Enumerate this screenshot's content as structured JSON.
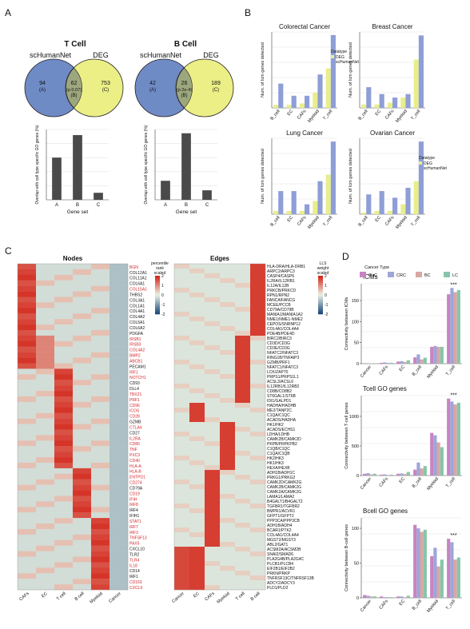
{
  "panel_labels": {
    "a": "A",
    "b": "B",
    "c": "C",
    "d": "D"
  },
  "venn": [
    {
      "title": "T Cell",
      "left_label": "scHumanNet",
      "right_label": "DEG",
      "regions": [
        {
          "count": "94",
          "tag": "(A)"
        },
        {
          "count": "62",
          "sub": "(p 0.07)",
          "tag": "(B)"
        },
        {
          "count": "753",
          "tag": "(C)"
        }
      ]
    },
    {
      "title": "B Cell",
      "left_label": "scHumanNet",
      "right_label": "DEG",
      "regions": [
        {
          "count": "42",
          "tag": "(A)"
        },
        {
          "count": "26",
          "sub": "(p 2e-4)",
          "tag": "(B)"
        },
        {
          "count": "189",
          "tag": "(C)"
        }
      ]
    }
  ],
  "chart_data": [
    {
      "type": "bar",
      "panel": "A",
      "title": "T Cell",
      "categories": [
        "A",
        "B",
        "C"
      ],
      "values": [
        30,
        46,
        5
      ],
      "ylim": [
        0,
        50
      ],
      "ylabel": "Overlap with cell type specific GO genes (%)",
      "xlabel": "Gene set"
    },
    {
      "type": "bar",
      "panel": "A",
      "title": "B Cell",
      "categories": [
        "A",
        "B",
        "C"
      ],
      "values": [
        10,
        35,
        5
      ],
      "ylim": [
        0,
        37
      ],
      "ylabel": "Overlap with cell type specific GO genes (%)",
      "xlabel": "Gene set"
    },
    {
      "type": "bar",
      "panel": "B",
      "title": "Colorectal Cancer",
      "categories": [
        "B_cell",
        "EC",
        "CAFs",
        "Myeloid",
        "T_cell"
      ],
      "series": [
        {
          "name": "DEG",
          "values": [
            1,
            1,
            1.5,
            5,
            13
          ]
        },
        {
          "name": "scHumanNet",
          "values": [
            8,
            4,
            4,
            11,
            24
          ]
        }
      ],
      "ylim": [
        0,
        25
      ],
      "ylabel": "Num. of Icm genes detected",
      "legend_title": "Datatype"
    },
    {
      "type": "bar",
      "panel": "B",
      "title": "Breast Cancer",
      "categories": [
        "B_cell",
        "EC",
        "CAFs",
        "Myeloid",
        "T_cell"
      ],
      "series": [
        {
          "name": "DEG",
          "values": [
            1,
            1,
            1.5,
            3,
            14
          ]
        },
        {
          "name": "scHumanNet",
          "values": [
            6,
            4,
            3,
            4,
            21
          ]
        }
      ],
      "ylim": [
        0,
        22
      ],
      "ylabel": "Num. of Icm genes detected"
    },
    {
      "type": "bar",
      "panel": "B",
      "title": "Lung Cancer",
      "categories": [
        "B_cell",
        "EC",
        "CAFs",
        "Myeloid",
        "T_cell"
      ],
      "series": [
        {
          "name": "DEG",
          "values": [
            1,
            1,
            1,
            4,
            12
          ]
        },
        {
          "name": "scHumanNet",
          "values": [
            7,
            7,
            3,
            10,
            22
          ]
        }
      ],
      "ylim": [
        0,
        23
      ],
      "ylabel": "Num. of Icm genes detected"
    },
    {
      "type": "bar",
      "panel": "B",
      "title": "Ovarian Cancer",
      "categories": [
        "B_cell",
        "EC",
        "CAFs",
        "Myeloid",
        "T_cell"
      ],
      "series": [
        {
          "name": "DEG",
          "values": [
            0.5,
            1,
            1,
            3,
            10
          ]
        },
        {
          "name": "scHumanNet",
          "values": [
            6,
            7,
            5,
            8,
            22
          ]
        }
      ],
      "ylim": [
        0,
        23
      ],
      "ylabel": "Num. of Icm genes detected",
      "legend_title": "Datatype"
    },
    {
      "type": "bar",
      "panel": "D",
      "title": "ICMs",
      "categories": [
        "Cancer",
        "CAFs",
        "EC",
        "B_cell",
        "Myeloid",
        "T_cell"
      ],
      "series": [
        {
          "name": "OvC",
          "values": [
            1,
            2,
            5,
            15,
            40,
            165
          ]
        },
        {
          "name": "CRC",
          "values": [
            1,
            3,
            6,
            22,
            42,
            180
          ]
        },
        {
          "name": "BC",
          "values": [
            1,
            2,
            4,
            10,
            40,
            170
          ]
        },
        {
          "name": "LC",
          "values": [
            1,
            2,
            8,
            14,
            40,
            175
          ]
        }
      ],
      "ylim": [
        0,
        190
      ],
      "yticks": [
        0,
        50,
        100,
        150
      ],
      "ylabel": "Connectivity between ICMs",
      "legend_title": "Cancer Type",
      "annotation": "***"
    },
    {
      "type": "bar",
      "panel": "D",
      "title": "Tcell GO genes",
      "categories": [
        "Cancer",
        "CAFs",
        "EC",
        "B_cell",
        "Myeloid",
        "T_cell"
      ],
      "series": [
        {
          "name": "OvC",
          "values": [
            30,
            15,
            30,
            100,
            720,
            1300
          ]
        },
        {
          "name": "CRC",
          "values": [
            40,
            20,
            35,
            220,
            680,
            1250
          ]
        },
        {
          "name": "BC",
          "values": [
            20,
            10,
            25,
            120,
            560,
            1200
          ]
        },
        {
          "name": "LC",
          "values": [
            30,
            15,
            60,
            160,
            480,
            1230
          ]
        }
      ],
      "ylim": [
        0,
        1350
      ],
      "yticks": [
        0,
        500,
        1000
      ],
      "ylabel": "Connectivity between T-cell genes",
      "annotation": "***"
    },
    {
      "type": "bar",
      "panel": "D",
      "title": "Bcell GO genes",
      "categories": [
        "Cancer",
        "CAFs",
        "EC",
        "B_cell",
        "Myeloid",
        "T_cell"
      ],
      "series": [
        {
          "name": "OvC",
          "values": [
            4,
            2,
            2,
            105,
            60,
            85
          ]
        },
        {
          "name": "CRC",
          "values": [
            3,
            1,
            2,
            100,
            72,
            80
          ]
        },
        {
          "name": "BC",
          "values": [
            2,
            1,
            1,
            95,
            45,
            55
          ]
        },
        {
          "name": "LC",
          "values": [
            2,
            1,
            3,
            98,
            55,
            58
          ]
        }
      ],
      "ylim": [
        0,
        115
      ],
      "yticks": [
        0,
        50,
        100
      ],
      "ylabel": "Connectivity between B-cell genes",
      "annotation": "***"
    }
  ],
  "heatmap_nodes": {
    "title": "Nodes",
    "columns": [
      "CAFs",
      "EC",
      "T cell",
      "B cell",
      "Myeloid",
      "Cancer"
    ],
    "legend_title": "percentile rank scaled",
    "legend_ticks": [
      "2",
      "1",
      "0",
      "-1",
      "-2"
    ],
    "genes": [
      "BGN",
      "COL12A1",
      "COL11A1",
      "COL6A1",
      "COL15A1",
      "THBS2",
      "COL3A1",
      "COL1A1",
      "COL4A1",
      "COL4A2",
      "COL5A1",
      "COL6A2",
      "PDGFA",
      "IRSB1",
      "IRSB3",
      "COL4A2",
      "BMP2",
      "ABCB1",
      "PECAM1",
      "IRF1",
      "NOTCH1",
      "CD93",
      "DLL4",
      "TBX21",
      "PRF1",
      "CD96",
      "ICOS",
      "CD28",
      "GZMB",
      "CTLA4",
      "CD27",
      "IL2RA",
      "CD80",
      "TNF",
      "PXC3",
      "CD40",
      "HLA-A",
      "HLA-B",
      "ENTPD1",
      "CD274",
      "CD79A",
      "CD19",
      "IFIH",
      "IRF8",
      "IRF4",
      "IFIH1",
      "STAT1",
      "IRF7",
      "IRF3",
      "TNFSF13",
      "PAX5",
      "CXCL10",
      "TLR2",
      "TLR4",
      "IL18",
      "CD14",
      "IRF1",
      "CD163",
      "CXCL9"
    ],
    "red_genes": [
      0,
      4,
      13,
      14,
      15,
      16,
      17,
      19,
      20,
      23,
      24,
      25,
      26,
      27,
      29,
      31,
      32,
      33,
      34,
      35,
      36,
      37,
      38,
      39,
      41,
      42,
      43,
      46,
      47,
      48,
      49,
      50,
      53,
      54,
      57,
      58
    ]
  },
  "heatmap_edges": {
    "title": "Edges",
    "columns": [
      "Cancer",
      "EC",
      "CAFs",
      "Myeloid",
      "T cell",
      "B cell"
    ],
    "legend_title": "LLS weight scaled",
    "legend_ticks": [
      "2",
      "1",
      "0",
      "-1",
      "-2"
    ],
    "pairs": [
      "HLA-DRA/HLA-DRB1",
      "ARPC2/ARPC3",
      "CASP4/CASP6",
      "IL2RA/IL12RB1",
      "IL12A/IL12B",
      "PRKCB/PRKCD",
      "RPN1/RPN2",
      "FANCA/FANCG",
      "MCEE/PCCB",
      "CD79A/CD79B",
      "MANIA1/MANIA1A2",
      "NME1/NME1-NME2",
      "CEPOS/SNRNP12",
      "COL4A1/COL4A4",
      "PDE4B/PDE4D",
      "BIRC2/BIRC3",
      "CD3D/CD3G",
      "CD3E/CD3G",
      "NFATC2/NFATC3",
      "RING1B/TNFAIP3",
      "GZMB/PRF1",
      "NFATC1/NFATC3",
      "LCK/ZAP70",
      "PRPS1/PRPS1L1",
      "ACSL3/ACSL6",
      "IL12RB1/IL12RB2",
      "CD8B/CD8B2",
      "ST6GAL1/ST6B",
      "IDI1/GALPD1",
      "HADHA/HADHB",
      "ME2/TANP2C",
      "C1QA/C1QC",
      "ACADS/HADHA",
      "HK1/HK2",
      "ACADS/ECHS1",
      "LDHA/LDHB",
      "CAMK2B/CAMK2D",
      "PKPB/PRPKPB2",
      "C1QB/C1QC",
      "C1QA/C1QB",
      "HK2/HK3",
      "HK1/HK3",
      "HEXA/HEXB",
      "ADH1B/ADH1C",
      "PRKG1/PRKG2",
      "CAMK2D/CAMK2G",
      "CAMK2B/CAMK2G",
      "CAMK2A/CAMK2G",
      "LAMA1/LAMA2",
      "B4GALT1/B4GALT2",
      "TGFBR1/TGFBR2",
      "BMPR1/ACVR1",
      "GFPT1/GFPT2",
      "PPP3CA/PPP3CB",
      "ADH1B/ADH4",
      "BCAR1/PTK2",
      "COL4A1/COL4A4",
      "MGST2/MGST3",
      "ABL2/GAT1",
      "ACSM2A/ACSM2B",
      "SNAI2/SMAD6",
      "PLA2G4B/PLA2G4C",
      "PLCB1/PLCB4",
      "EIF2B1/EIF2B2",
      "PRKN/PRKP",
      "TNFRSF13C/TNFRSF13B",
      "ADCY2/ADCY3",
      "PLD1/PLD2"
    ]
  },
  "legend_colors": {
    "DEG": "#e8ee8a",
    "scHumanNet": "#8e9ed6",
    "OvC": "#c884c1",
    "CRC": "#9ea6d9",
    "BC": "#d8a7a4",
    "LC": "#86c5a9",
    "heat_high": "#d42a1e",
    "heat_mid": "#eaf2e3",
    "heat_low": "#1e4b7e"
  }
}
